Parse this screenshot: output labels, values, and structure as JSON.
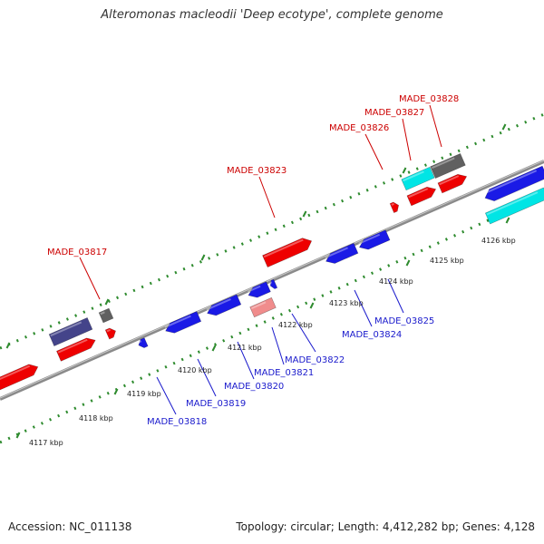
{
  "title": "Alteromonas macleodii 'Deep ecotype', complete genome",
  "footer": {
    "accession": "Accession: NC_011138",
    "topology": "Topology: circular; Length: 4,412,282 bp; Genes: 4,128"
  },
  "colors": {
    "forward": "#ee0000",
    "reverse": "#1a1ae6",
    "forward_label": "#cc0000",
    "reverse_label": "#1a1acc",
    "cyan": "#00e5e5",
    "gray": "#606060",
    "slate": "#44448a",
    "pink": "#f08c8c",
    "backbone": "#888888",
    "ticks": "#2e8b2e"
  },
  "kbp_ticks": [
    "4117 kbp",
    "4118 kbp",
    "4119 kbp",
    "4120 kbp",
    "4121 kbp",
    "4122 kbp",
    "4123 kbp",
    "4124 kbp",
    "4125 kbp",
    "4126 kbp"
  ],
  "gene_labels": [
    {
      "text": "MADE_03817",
      "strand": "forward"
    },
    {
      "text": "MADE_03823",
      "strand": "forward"
    },
    {
      "text": "MADE_03826",
      "strand": "forward"
    },
    {
      "text": "MADE_03827",
      "strand": "forward"
    },
    {
      "text": "MADE_03828",
      "strand": "forward"
    },
    {
      "text": "MADE_03818",
      "strand": "reverse"
    },
    {
      "text": "MADE_03819",
      "strand": "reverse"
    },
    {
      "text": "MADE_03820",
      "strand": "reverse"
    },
    {
      "text": "MADE_03821",
      "strand": "reverse"
    },
    {
      "text": "MADE_03822",
      "strand": "reverse"
    },
    {
      "text": "MADE_03824",
      "strand": "reverse"
    },
    {
      "text": "MADE_03825",
      "strand": "reverse"
    }
  ]
}
